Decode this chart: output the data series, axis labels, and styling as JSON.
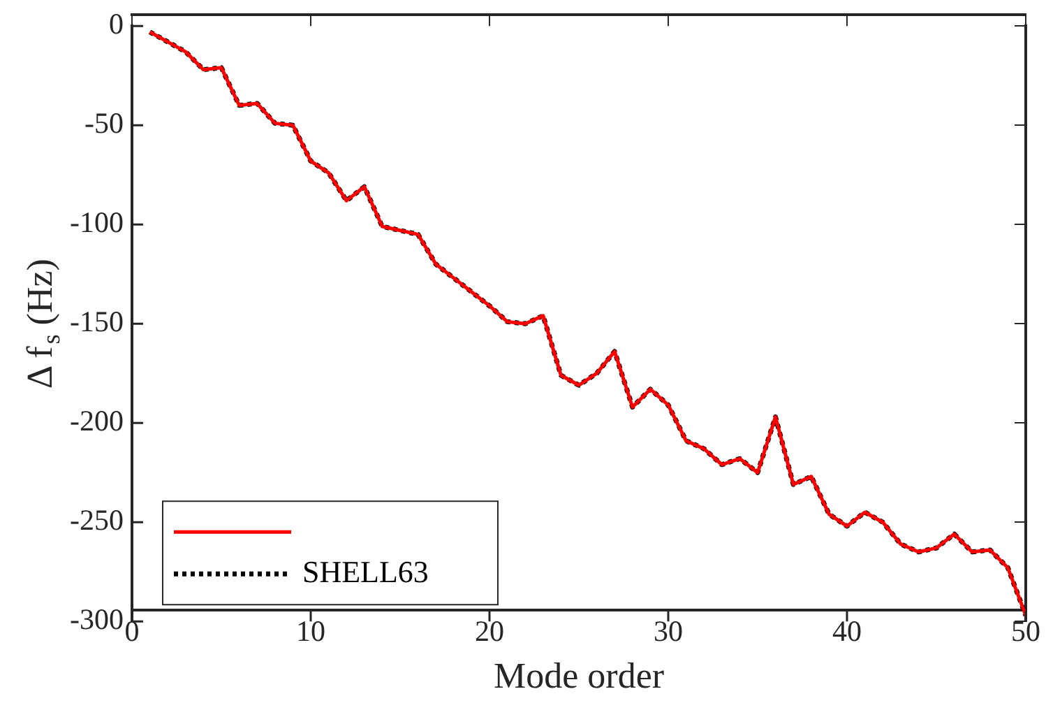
{
  "chart_data": {
    "type": "line",
    "xlabel": "Mode order",
    "ylabel": "Δ f$_{s}$ (Hz)",
    "x": [
      1,
      2,
      3,
      4,
      5,
      6,
      7,
      8,
      9,
      10,
      11,
      12,
      13,
      14,
      15,
      16,
      17,
      18,
      19,
      20,
      21,
      22,
      23,
      24,
      25,
      26,
      27,
      28,
      29,
      30,
      31,
      32,
      33,
      34,
      35,
      36,
      37,
      38,
      39,
      40,
      41,
      42,
      43,
      44,
      45,
      46,
      47,
      48,
      49,
      50
    ],
    "series": [
      {
        "color": "#ff0000",
        "line_style": "solid",
        "values": [
          -3,
          -8,
          -13,
          -22,
          -21,
          -40,
          -39,
          -49,
          -50,
          -68,
          -74,
          -88,
          -81,
          -101,
          -103,
          -105,
          -120,
          -127,
          -134,
          -141,
          -149,
          -150,
          -146,
          -176,
          -181,
          -175,
          -164,
          -192,
          -183,
          -191,
          -209,
          -213,
          -221,
          -218,
          -225,
          -197,
          -231,
          -227,
          -246,
          -252,
          -245,
          -250,
          -261,
          -265,
          -263,
          -256,
          -265,
          -264,
          -273,
          -297
        ]
      },
      {
        "name": "SHELL63",
        "color": "#000000",
        "line_style": "dotted",
        "values": [
          -3,
          -8,
          -13,
          -22,
          -21,
          -40,
          -39,
          -49,
          -50,
          -68,
          -74,
          -88,
          -81,
          -101,
          -103,
          -105,
          -120,
          -127,
          -134,
          -141,
          -149,
          -150,
          -146,
          -176,
          -181,
          -175,
          -164,
          -192,
          -183,
          -191,
          -209,
          -213,
          -221,
          -218,
          -225,
          -197,
          -231,
          -227,
          -246,
          -252,
          -245,
          -250,
          -261,
          -265,
          -263,
          -256,
          -265,
          -264,
          -273,
          -297
        ]
      }
    ],
    "xlim": [
      0,
      50
    ],
    "xticks": [
      0,
      10,
      20,
      30,
      40,
      50
    ],
    "ylim": [
      -300,
      0
    ],
    "yticks": [
      -300,
      -250,
      -200,
      -150,
      -100,
      -50,
      0
    ],
    "grid": false,
    "legend": "bottom left",
    "marker": "none"
  }
}
